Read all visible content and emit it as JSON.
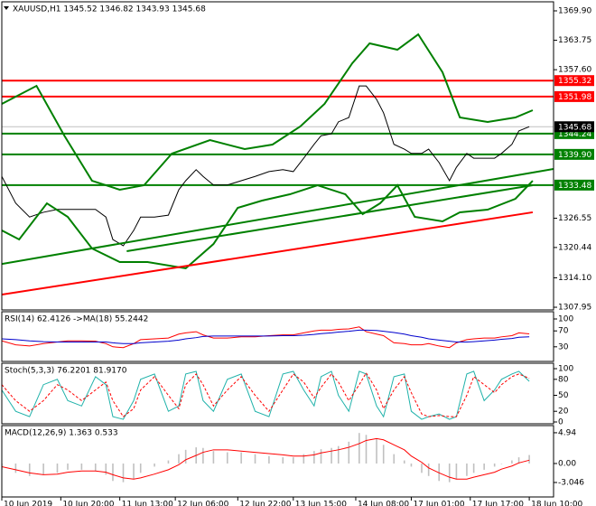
{
  "chart_data": [
    {
      "type": "line",
      "title": "XAUUSD,H1  1345.52 1346.82 1343.93 1345.68",
      "xlim": [
        0,
        159
      ],
      "ylim": [
        1307.39,
        1371.79
      ],
      "yticks": [
        {
          "value": 1369.9,
          "label": "1369.90"
        },
        1363.75,
        {
          "value": 1357.6,
          "label": "1357.60"
        },
        1326.55,
        1320.44,
        {
          "value": 1314.1,
          "label": "1314.10"
        },
        1307.95
      ],
      "grid": false,
      "bid": 1345.68,
      "levels": [
        {
          "value": 1355.32,
          "color": "#ff0000"
        },
        {
          "value": 1351.98,
          "color": "#ff0000"
        },
        {
          "value": 1344.24,
          "color": "#008000"
        },
        {
          "value": 1339.9,
          "label": "1339.90",
          "color": "#008000"
        },
        {
          "value": 1333.48,
          "color": "#008000"
        }
      ],
      "series": [
        {
          "color": "#000000",
          "x": [
            0,
            4,
            8,
            12,
            16,
            19,
            23,
            27,
            30,
            32,
            35,
            38,
            40,
            44,
            48,
            51,
            53,
            56,
            58,
            61,
            65,
            69,
            73,
            77,
            81,
            84,
            87,
            90,
            92,
            95,
            97,
            100,
            103,
            105,
            108,
            110,
            113,
            116,
            118,
            121,
            123,
            126,
            129,
            131,
            134,
            136,
            139,
            142,
            144,
            147,
            149,
            152
          ],
          "values": [
            1335.3,
            1329.7,
            1326.8,
            1327.8,
            1328.4,
            1328.4,
            1328.4,
            1328.4,
            1326.8,
            1322.1,
            1320.8,
            1324,
            1326.8,
            1326.8,
            1327.2,
            1332.5,
            1334.4,
            1336.7,
            1335.3,
            1333.5,
            1333.5,
            1334.4,
            1335.3,
            1336.3,
            1336.7,
            1336.3,
            1339.1,
            1342,
            1343.8,
            1344.2,
            1346.7,
            1347.6,
            1354.2,
            1354.2,
            1351.4,
            1348.6,
            1342,
            1341,
            1340.1,
            1340.1,
            1341,
            1338.2,
            1334.4,
            1337.2,
            1340.1,
            1339.1,
            1339.1,
            1339.1,
            1340.1,
            1342,
            1344.8,
            1345.7
          ]
        },
        {
          "color": "#008000",
          "x": [
            0,
            10,
            18,
            26,
            34,
            41,
            49,
            60,
            70,
            78,
            86,
            93,
            101,
            106,
            114,
            120,
            127,
            132,
            140,
            148,
            153
          ],
          "values": [
            1350.45,
            1354.22,
            1343.84,
            1334.39,
            1332.51,
            1333.45,
            1340.06,
            1342.89,
            1341,
            1341.95,
            1345.73,
            1350.45,
            1358.95,
            1363.1,
            1361.78,
            1364.99,
            1357.06,
            1347.61,
            1346.67,
            1347.61,
            1349.13
          ]
        },
        {
          "color": "#008000",
          "x": [
            0,
            5,
            13,
            19,
            26,
            34,
            42,
            53,
            61,
            68,
            75,
            83,
            91,
            99,
            104,
            109,
            114,
            119,
            127,
            132,
            140,
            148,
            153
          ],
          "values": [
            1324.01,
            1322.12,
            1329.67,
            1326.84,
            1320.23,
            1317.4,
            1317.4,
            1316.08,
            1321.17,
            1328.73,
            1330.24,
            1331.56,
            1333.45,
            1331.56,
            1327.41,
            1329.67,
            1333.45,
            1326.84,
            1325.9,
            1327.79,
            1328.35,
            1330.62,
            1334.39
          ]
        },
        {
          "color": "#ff0000",
          "x": [
            0,
            153
          ],
          "values": [
            1310.6,
            1327.8
          ]
        },
        {
          "color": "#008000",
          "x": [
            0,
            159
          ],
          "values": [
            1317,
            1336.85
          ]
        },
        {
          "color": "#008000",
          "x": [
            36,
            153
          ],
          "values": [
            1319.66,
            1333.45
          ]
        }
      ]
    },
    {
      "type": "line",
      "title": "RSI(14) 62.4126 ->MA(18) 55.2442",
      "xlim": [
        0,
        159
      ],
      "ylim": [
        -6.8,
        118.2
      ],
      "yticks": [
        100,
        70,
        30
      ],
      "series": [
        {
          "color": "#ff0000",
          "x": [
            0,
            4,
            8,
            12,
            16,
            19,
            23,
            27,
            30,
            32,
            35,
            38,
            40,
            44,
            48,
            51,
            53,
            56,
            58,
            61,
            65,
            69,
            73,
            77,
            81,
            84,
            87,
            90,
            92,
            95,
            97,
            100,
            103,
            105,
            108,
            110,
            113,
            116,
            118,
            121,
            123,
            126,
            129,
            131,
            134,
            136,
            139,
            142,
            144,
            147,
            149,
            152
          ],
          "values": [
            45,
            35,
            32,
            38,
            42,
            45,
            45,
            44,
            38,
            30,
            28,
            38,
            48,
            50,
            52,
            62,
            65,
            68,
            60,
            52,
            52,
            55,
            55,
            58,
            60,
            60,
            65,
            70,
            72,
            72,
            74,
            75,
            80,
            68,
            62,
            58,
            40,
            38,
            35,
            35,
            38,
            32,
            28,
            40,
            48,
            50,
            52,
            52,
            55,
            58,
            65,
            62.4126
          ]
        },
        {
          "color": "#0000cd",
          "x": [
            0,
            4,
            8,
            12,
            16,
            19,
            23,
            27,
            30,
            32,
            35,
            38,
            40,
            44,
            48,
            51,
            53,
            56,
            58,
            61,
            65,
            69,
            73,
            77,
            81,
            84,
            87,
            90,
            92,
            95,
            97,
            100,
            103,
            105,
            108,
            110,
            113,
            116,
            118,
            121,
            123,
            126,
            129,
            131,
            134,
            136,
            139,
            142,
            144,
            147,
            149,
            152
          ],
          "values": [
            50,
            48,
            45,
            43,
            42,
            42,
            42,
            42,
            42,
            40,
            38,
            38,
            40,
            42,
            44,
            47,
            50,
            53,
            56,
            57,
            57,
            57,
            57,
            57,
            58,
            58,
            59,
            61,
            63,
            65,
            67,
            69,
            72,
            72,
            71,
            69,
            66,
            62,
            58,
            54,
            50,
            47,
            44,
            42,
            42,
            43,
            45,
            47,
            49,
            51,
            54,
            55.2442
          ]
        }
      ]
    },
    {
      "type": "line",
      "title": "Stoch(5,3,3) 76.2201 81.9170",
      "xlim": [
        0,
        159
      ],
      "ylim": [
        -3.4,
        110.2
      ],
      "yticks": [
        100,
        80,
        50,
        20,
        0
      ],
      "series": [
        {
          "color": "#20b2aa",
          "x": [
            0,
            4,
            8,
            12,
            16,
            19,
            23,
            27,
            30,
            32,
            35,
            38,
            40,
            44,
            48,
            51,
            53,
            56,
            58,
            61,
            65,
            69,
            73,
            77,
            81,
            84,
            87,
            90,
            92,
            95,
            97,
            100,
            103,
            105,
            108,
            110,
            113,
            116,
            118,
            121,
            123,
            126,
            129,
            131,
            134,
            136,
            139,
            142,
            144,
            147,
            149,
            152
          ],
          "values": [
            60,
            20,
            10,
            70,
            80,
            40,
            30,
            85,
            70,
            10,
            5,
            40,
            80,
            90,
            20,
            30,
            90,
            95,
            40,
            20,
            80,
            90,
            20,
            10,
            90,
            95,
            60,
            30,
            85,
            95,
            50,
            20,
            95,
            90,
            30,
            10,
            85,
            90,
            20,
            5,
            10,
            15,
            5,
            10,
            90,
            95,
            40,
            60,
            80,
            90,
            95,
            76.2201
          ]
        },
        {
          "color": "#ff0000",
          "dash": true,
          "x": [
            0,
            4,
            8,
            12,
            16,
            19,
            23,
            27,
            30,
            32,
            35,
            38,
            40,
            44,
            48,
            51,
            53,
            56,
            58,
            61,
            65,
            69,
            73,
            77,
            81,
            84,
            87,
            90,
            92,
            95,
            97,
            100,
            103,
            105,
            108,
            110,
            113,
            116,
            118,
            121,
            123,
            126,
            129,
            131,
            134,
            136,
            139,
            142,
            144,
            147,
            149,
            152
          ],
          "values": [
            70,
            40,
            20,
            40,
            70,
            60,
            40,
            60,
            75,
            40,
            10,
            25,
            60,
            85,
            50,
            25,
            70,
            90,
            70,
            30,
            60,
            85,
            50,
            20,
            60,
            90,
            75,
            45,
            65,
            90,
            75,
            40,
            70,
            92,
            60,
            25,
            60,
            85,
            55,
            15,
            10,
            12,
            10,
            10,
            50,
            85,
            70,
            55,
            70,
            85,
            90,
            81.917
          ]
        }
      ]
    },
    {
      "type": "macd",
      "title": "MACD(12,26,9) 1.363 0.533",
      "xlim": [
        0,
        159
      ],
      "ylim": [
        -5.37,
        6.09
      ],
      "yticks": [
        4.94,
        {
          "value": 0,
          "label": "0.00"
        },
        -3.046
      ],
      "xticks": [
        {
          "value": 0,
          "label": "10 Jun 2019"
        },
        {
          "value": 17,
          "label": "10 Jun 20:00"
        },
        {
          "value": 34,
          "label": "11 Jun 13:00"
        },
        {
          "value": 50,
          "label": "12 Jun 06:00"
        },
        {
          "value": 68,
          "label": "12 Jun 22:00"
        },
        {
          "value": 84,
          "label": "13 Jun 15:00"
        },
        {
          "value": 102,
          "label": "14 Jun 08:00"
        },
        {
          "value": 118,
          "label": "17 Jun 01:00"
        },
        {
          "value": 135,
          "label": "17 Jun 17:00"
        },
        {
          "value": 152,
          "label": "18 Jun 10:00"
        }
      ],
      "series": [
        {
          "type": "bar",
          "color": "#c0c0c0",
          "x": [
            0,
            4,
            8,
            12,
            16,
            19,
            23,
            27,
            30,
            32,
            35,
            38,
            40,
            44,
            48,
            51,
            53,
            56,
            58,
            61,
            65,
            69,
            73,
            77,
            81,
            84,
            87,
            90,
            92,
            95,
            97,
            100,
            103,
            105,
            108,
            110,
            113,
            116,
            118,
            121,
            123,
            126,
            129,
            131,
            134,
            136,
            139,
            142,
            144,
            147,
            149,
            152
          ],
          "values": [
            -1,
            -1.5,
            -2,
            -1.8,
            -1.5,
            -1,
            -1,
            -1.2,
            -1.8,
            -2.8,
            -3,
            -2.5,
            -1.5,
            -0.5,
            0.5,
            1.5,
            2.2,
            2.6,
            2.5,
            2,
            1.8,
            1.8,
            1.5,
            1.2,
            1,
            1,
            1.5,
            2,
            2.3,
            2.5,
            2.8,
            3.5,
            4.9,
            4.6,
            4,
            3,
            1.5,
            0.5,
            -0.5,
            -1.5,
            -2,
            -2.8,
            -3,
            -2.5,
            -2,
            -1.5,
            -1,
            -0.5,
            0,
            0.5,
            1,
            1.363
          ]
        },
        {
          "type": "line",
          "color": "#ff0000",
          "x": [
            0,
            4,
            8,
            12,
            16,
            19,
            23,
            27,
            30,
            32,
            35,
            38,
            40,
            44,
            48,
            51,
            53,
            56,
            58,
            61,
            65,
            69,
            73,
            77,
            81,
            84,
            87,
            90,
            92,
            95,
            97,
            100,
            103,
            105,
            108,
            110,
            113,
            116,
            118,
            121,
            123,
            126,
            129,
            131,
            134,
            136,
            139,
            142,
            144,
            147,
            149,
            152
          ],
          "values": [
            -0.5,
            -1,
            -1.5,
            -1.8,
            -1.7,
            -1.4,
            -1.2,
            -1.2,
            -1.4,
            -1.8,
            -2.3,
            -2.5,
            -2.3,
            -1.7,
            -1,
            -0.2,
            0.6,
            1.3,
            1.8,
            2.2,
            2.2,
            2,
            1.8,
            1.6,
            1.4,
            1.2,
            1.2,
            1.4,
            1.7,
            2,
            2.2,
            2.6,
            3.2,
            3.7,
            4,
            3.8,
            3,
            2.2,
            1.2,
            0.2,
            -0.7,
            -1.5,
            -2.2,
            -2.5,
            -2.5,
            -2.2,
            -1.8,
            -1.4,
            -0.9,
            -0.4,
            0.1,
            0.533
          ]
        }
      ]
    }
  ]
}
